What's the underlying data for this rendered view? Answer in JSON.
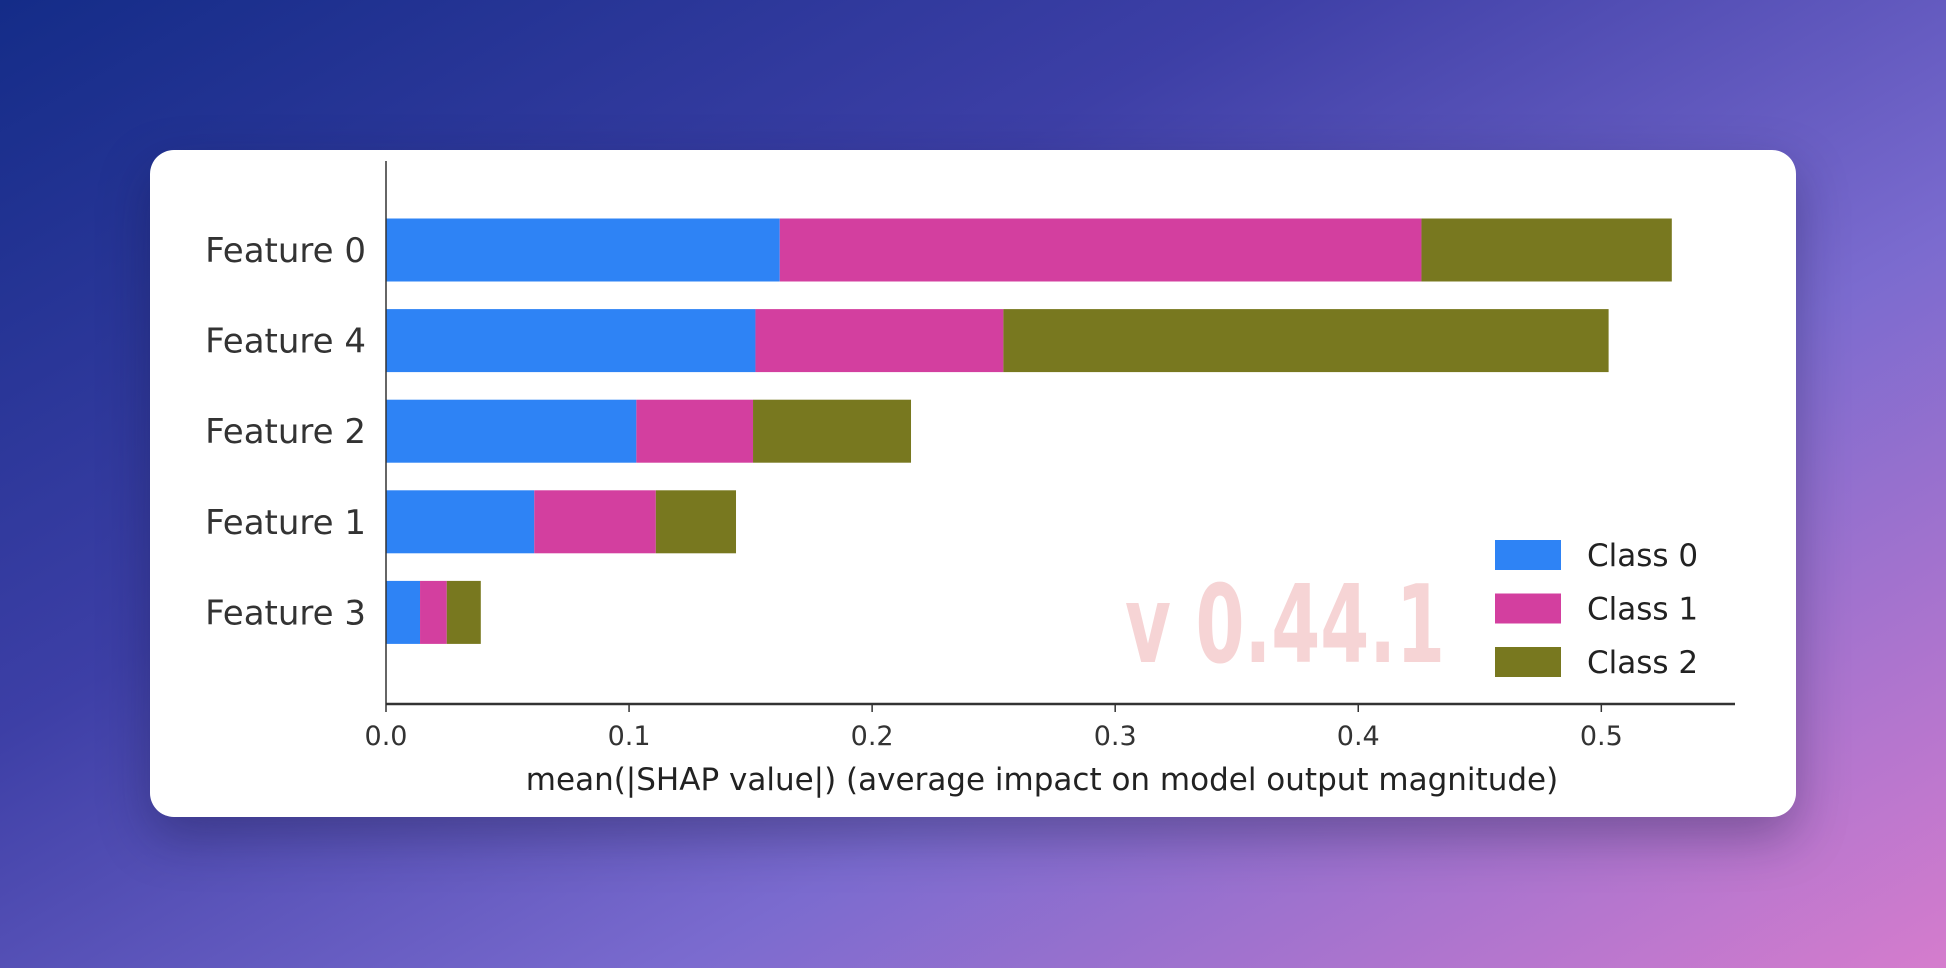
{
  "watermark": "v 0.44.1",
  "chart_data": {
    "type": "bar",
    "orientation": "horizontal",
    "stacked": true,
    "categories": [
      "Feature 0",
      "Feature 4",
      "Feature 2",
      "Feature 1",
      "Feature 3"
    ],
    "series": [
      {
        "name": "Class 0",
        "color": "#2e83f5",
        "values": [
          0.162,
          0.152,
          0.103,
          0.061,
          0.014
        ]
      },
      {
        "name": "Class 1",
        "color": "#d33f9f",
        "values": [
          0.264,
          0.102,
          0.048,
          0.05,
          0.011
        ]
      },
      {
        "name": "Class 2",
        "color": "#78781f",
        "values": [
          0.103,
          0.249,
          0.065,
          0.033,
          0.014
        ]
      }
    ],
    "xlabel": "mean(|SHAP value|) (average impact on model output magnitude)",
    "ylabel": "",
    "xlim": [
      0,
      0.555
    ],
    "xticks": [
      "0.0",
      "0.1",
      "0.2",
      "0.3",
      "0.4",
      "0.5"
    ],
    "grid": false,
    "legend_position": "bottom-right"
  }
}
